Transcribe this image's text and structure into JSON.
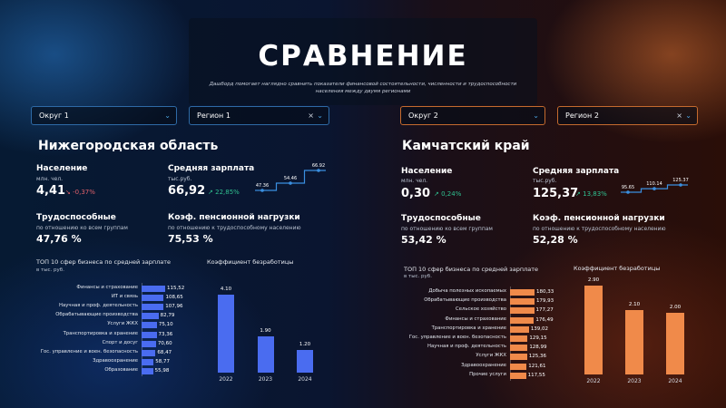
{
  "header": {
    "title": "СРАВНЕНИЕ",
    "subtitle_line1": "Дашборд помогает наглядно сравнить показатели финансовой состоятельности, численности и трудоспособности",
    "subtitle_line2": "населения между двумя регионами"
  },
  "colors": {
    "left_accent": "#4a6cf0",
    "right_accent": "#f08a4a",
    "up": "#30c090",
    "down": "#e0606a"
  },
  "left": {
    "district_select": "Округ 1",
    "region_select": "Регион 1",
    "region_name": "Нижегородская область",
    "population": {
      "label": "Население",
      "unit": "млн. чел.",
      "value": "4,41",
      "delta": "-0,37%",
      "delta_icon": "arrow-down-right-icon"
    },
    "salary": {
      "label": "Средняя зарплата",
      "unit": "тыс.руб.",
      "value": "66,92",
      "delta": "22,85%",
      "delta_icon": "arrow-up-right-icon"
    },
    "salary_trend": {
      "values": [
        47.36,
        54.46,
        66.92
      ],
      "labels": [
        "47.36",
        "54.46",
        "66.92"
      ]
    },
    "workers": {
      "label": "Трудоспособные",
      "sub": "по отношению ко всем группам",
      "value": "47,76 %"
    },
    "pension": {
      "label": "Коэф. пенсионной нагрузки",
      "sub": "по отношению к трудоспособному населению",
      "value": "75,53 %"
    },
    "top10": {
      "title": "ТОП 10 сфер бизнеса по средней зарплате",
      "unit": "в тыс. руб.",
      "items": [
        {
          "label": "Финансы и страхование",
          "value": 115.52,
          "text": "115,52"
        },
        {
          "label": "ИТ и связь",
          "value": 108.65,
          "text": "108,65"
        },
        {
          "label": "Научная и проф. деятельность",
          "value": 107.96,
          "text": "107,96"
        },
        {
          "label": "Обрабатывающие производства",
          "value": 82.79,
          "text": "82,79"
        },
        {
          "label": "Услуги ЖКХ",
          "value": 75.1,
          "text": "75,10"
        },
        {
          "label": "Транспортировка и хранение",
          "value": 73.36,
          "text": "73,36"
        },
        {
          "label": "Спорт и досуг",
          "value": 70.6,
          "text": "70,60"
        },
        {
          "label": "Гос. управление и воен. безопасность",
          "value": 68.47,
          "text": "68,47"
        },
        {
          "label": "Здравоохранение",
          "value": 58.77,
          "text": "58,77"
        },
        {
          "label": "Образование",
          "value": 55.98,
          "text": "55,98"
        }
      ]
    },
    "unemployment": {
      "title": "Коэффициент безработицы",
      "categories": [
        "2022",
        "2023",
        "2024"
      ],
      "values": [
        4.1,
        1.9,
        1.2
      ],
      "labels": [
        "4.10",
        "1.90",
        "1.20"
      ]
    }
  },
  "right": {
    "district_select": "Округ 2",
    "region_select": "Регион 2",
    "region_name": "Камчатский край",
    "population": {
      "label": "Население",
      "unit": "млн. чел.",
      "value": "0,30",
      "delta": "0,24%",
      "delta_icon": "arrow-up-right-icon"
    },
    "salary": {
      "label": "Средняя зарплата",
      "unit": "тыс.руб.",
      "value": "125,37",
      "delta": "13,83%",
      "delta_icon": "arrow-up-right-icon"
    },
    "salary_trend": {
      "values": [
        95.65,
        110.14,
        125.37
      ],
      "labels": [
        "95.65",
        "110.14",
        "125.37"
      ]
    },
    "workers": {
      "label": "Трудоспособные",
      "sub": "по отношению ко всем группам",
      "value": "53,42 %"
    },
    "pension": {
      "label": "Коэф. пенсионной нагрузки",
      "sub": "по отношению к трудоспособному населению",
      "value": "52,28 %"
    },
    "top10": {
      "title": "ТОП 10 сфер бизнеса по средней зарплате",
      "unit": "в тыс. руб.",
      "items": [
        {
          "label": "Добыча полезных ископаемых",
          "value": 180.33,
          "text": "180,33"
        },
        {
          "label": "Обрабатывающие производства",
          "value": 179.93,
          "text": "179,93"
        },
        {
          "label": "Сельское хозяйство",
          "value": 177.27,
          "text": "177,27"
        },
        {
          "label": "Финансы и страхование",
          "value": 176.49,
          "text": "176,49"
        },
        {
          "label": "Транспортировка и хранение",
          "value": 139.02,
          "text": "139,02"
        },
        {
          "label": "Гос. управление и воен. безопасность",
          "value": 129.15,
          "text": "129,15"
        },
        {
          "label": "Научная и проф. деятельность",
          "value": 128.99,
          "text": "128,99"
        },
        {
          "label": "Услуги ЖКХ",
          "value": 125.36,
          "text": "125,36"
        },
        {
          "label": "Здравоохранение",
          "value": 121.61,
          "text": "121,61"
        },
        {
          "label": "Прочие услуги",
          "value": 117.55,
          "text": "117,55"
        }
      ]
    },
    "unemployment": {
      "title": "Коэффициент безработицы",
      "categories": [
        "2022",
        "2023",
        "2024"
      ],
      "values": [
        2.9,
        2.1,
        2.0
      ],
      "labels": [
        "2.90",
        "2.10",
        "2.00"
      ]
    }
  }
}
